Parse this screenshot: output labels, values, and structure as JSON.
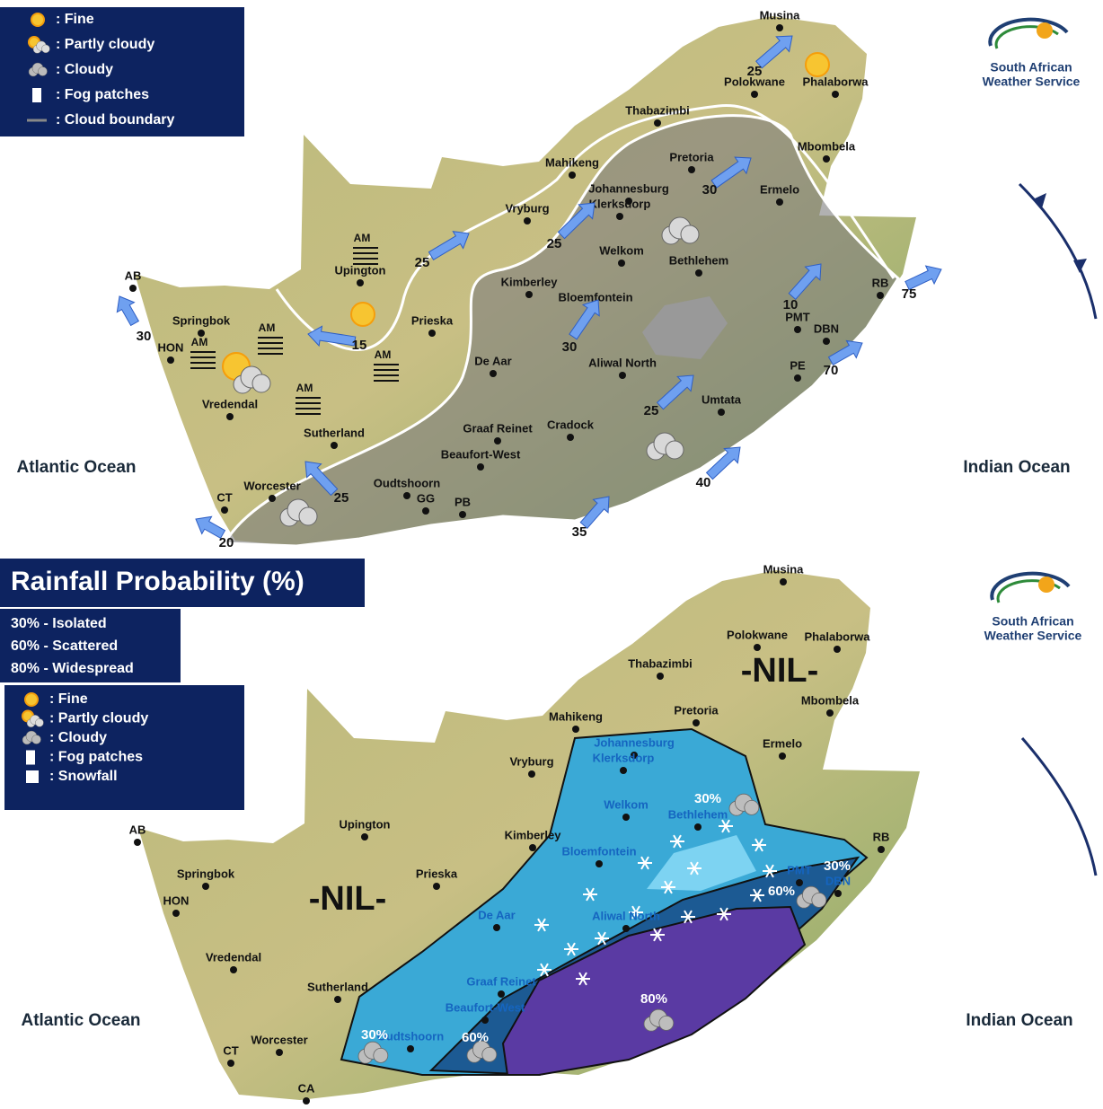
{
  "forecast_map": {
    "legend": [
      ": Fine",
      ": Partly cloudy",
      ": Cloudy",
      ": Fog patches",
      ": Cloud boundary"
    ],
    "logo": [
      "South African",
      "Weather Service"
    ],
    "oceans": [
      "Atlantic Ocean",
      "Indian Ocean"
    ],
    "places": [
      "Musina",
      "Polokwane",
      "Phalaborwa",
      "Thabazimbi",
      "Mbombela",
      "Mahikeng",
      "Pretoria",
      "Johannesburg",
      "Klerksdorp",
      "Ermelo",
      "Vryburg",
      "Welkom",
      "Bethlehem",
      "Upington",
      "Kimberley",
      "Bloemfontein",
      "Prieska",
      "Springbok",
      "HON",
      "AB",
      "Vredendal",
      "De Aar",
      "Aliwal North",
      "Umtata",
      "PMT",
      "DBN",
      "RB",
      "PE",
      "Graaf Reinet",
      "Cradock",
      "Beaufort-West",
      "Sutherland",
      "Worcester",
      "Oudtshoorn",
      "GG",
      "PB",
      "CT"
    ],
    "wind_speeds": [
      25,
      30,
      25,
      25,
      30,
      15,
      10,
      75,
      70,
      25,
      40,
      25,
      35,
      30,
      20
    ],
    "fog_labels": [
      "AM",
      "AM",
      "AM",
      "AM",
      "AM"
    ]
  },
  "rainfall_map": {
    "title": "Rainfall Probability (%)",
    "key": [
      "30% - Isolated",
      "60% - Scattered",
      "80% - Widespread"
    ],
    "legend": [
      ": Fine",
      ": Partly cloudy",
      ": Cloudy",
      ": Fog patches",
      ": Snowfall"
    ],
    "logo": [
      "South African",
      "Weather Service"
    ],
    "oceans": [
      "Atlantic Ocean",
      "Indian Ocean"
    ],
    "nil_labels": [
      "-NIL-",
      "-NIL-"
    ],
    "places": [
      "Musina",
      "Polokwane",
      "Phalaborwa",
      "Thabazimbi",
      "Mbombela",
      "Mahikeng",
      "Pretoria",
      "Johannesburg",
      "Klerksdorp",
      "Ermelo",
      "Vryburg",
      "Welkom",
      "Bethlehem",
      "Upington",
      "Kimberley",
      "Bloemfontein",
      "Prieska",
      "Springbok",
      "HON",
      "AB",
      "Vredendal",
      "De Aar",
      "Aliwal North",
      "PMT",
      "DBN",
      "RB",
      "Graaf Reinet",
      "Beaufort-West",
      "Sutherland",
      "Worcester",
      "Oudtshoorn",
      "CT",
      "CA"
    ],
    "probabilities": [
      "30%",
      "30%",
      "60%",
      "80%",
      "30%",
      "60%"
    ]
  }
}
